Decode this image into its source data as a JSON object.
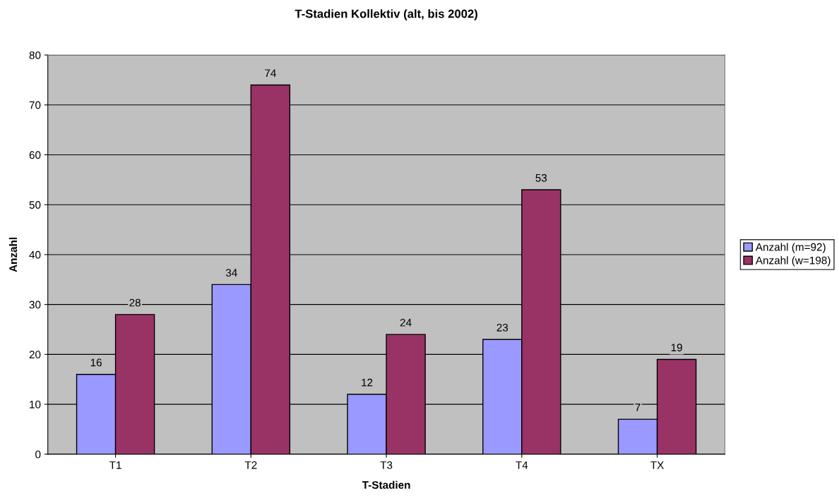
{
  "chart_data": {
    "type": "bar",
    "title": "T-Stadien Kollektiv (alt, bis 2002)",
    "xlabel": "T-Stadien",
    "ylabel": "Anzahl",
    "categories": [
      "T1",
      "T2",
      "T3",
      "T4",
      "TX"
    ],
    "series": [
      {
        "name": "Anzahl (m=92)",
        "color": "#9999ff",
        "values": [
          16,
          34,
          12,
          23,
          7
        ]
      },
      {
        "name": "Anzahl (w=198)",
        "color": "#993366",
        "values": [
          28,
          74,
          24,
          53,
          19
        ]
      }
    ],
    "ylim": [
      0,
      80
    ],
    "yticks": [
      0,
      10,
      20,
      30,
      40,
      50,
      60,
      70,
      80
    ],
    "grid": "y",
    "legend": "right",
    "data_labels": true
  }
}
